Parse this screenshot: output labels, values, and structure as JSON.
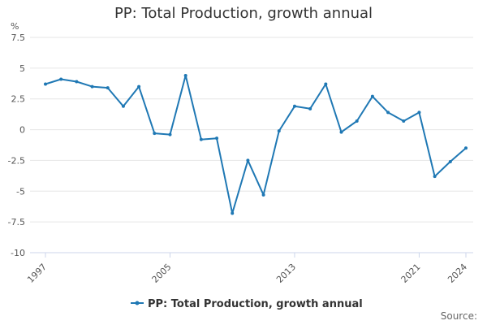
{
  "chart_data": {
    "type": "line",
    "title": "PP: Total Production, growth annual",
    "ylabel": "%",
    "xlabel": "",
    "ylim": [
      -10,
      7.5
    ],
    "xlim": [
      1997,
      2024
    ],
    "y_ticks": [
      "7.5",
      "5",
      "2.5",
      "0",
      "-2.5",
      "-5",
      "-7.5",
      "-10"
    ],
    "x_ticks": [
      "1997",
      "2005",
      "2013",
      "2021",
      "2024"
    ],
    "grid": true,
    "legend_position": "bottom",
    "series": [
      {
        "name": "PP: Total Production, growth annual",
        "color": "#1f78b4",
        "x": [
          1997,
          1998,
          1999,
          2000,
          2001,
          2002,
          2003,
          2004,
          2005,
          2006,
          2007,
          2008,
          2009,
          2010,
          2011,
          2012,
          2013,
          2014,
          2015,
          2016,
          2017,
          2018,
          2019,
          2020,
          2021,
          2022,
          2023,
          2024
        ],
        "values": [
          3.7,
          4.1,
          3.9,
          3.5,
          3.4,
          1.9,
          3.5,
          -0.3,
          -0.4,
          4.4,
          -0.8,
          -0.7,
          -6.8,
          -2.5,
          -5.3,
          -0.1,
          1.9,
          1.7,
          3.7,
          -0.2,
          0.7,
          2.7,
          1.4,
          0.7,
          1.4,
          -3.8,
          -2.6,
          -1.5
        ]
      }
    ]
  },
  "footer": {
    "source_label": "Source:"
  }
}
